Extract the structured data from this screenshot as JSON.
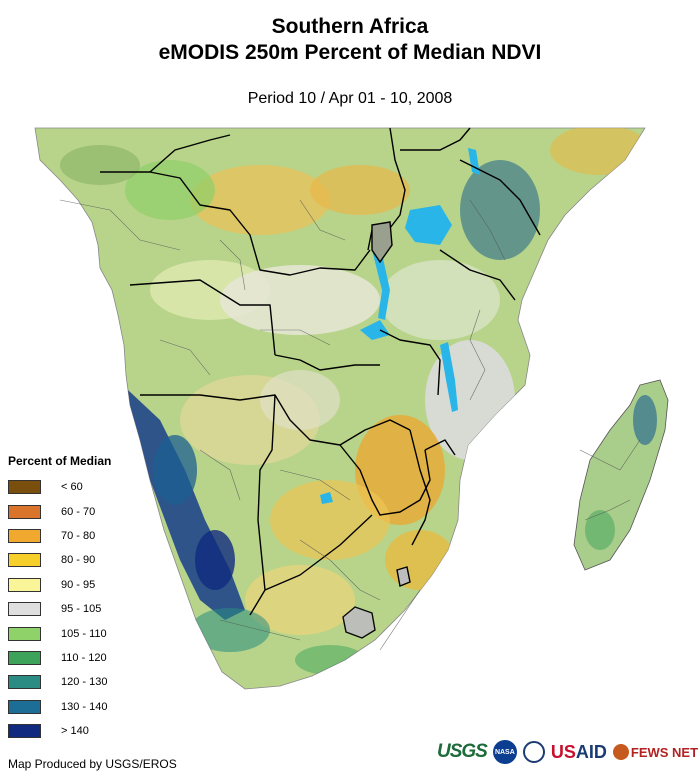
{
  "title_line1": "Southern Africa",
  "title_line2": "eMODIS 250m Percent of Median NDVI",
  "period": "Period 10 / Apr 01 - 10, 2008",
  "legend": {
    "title": "Percent of Median",
    "items": [
      {
        "label": "< 60",
        "color": "#7a4e0c"
      },
      {
        "label": "60 - 70",
        "color": "#d9742a"
      },
      {
        "label": "70 - 80",
        "color": "#f0a92e"
      },
      {
        "label": "80 - 90",
        "color": "#f6cf2a"
      },
      {
        "label": "90 - 95",
        "color": "#fbf59a"
      },
      {
        "label": "95 - 105",
        "color": "#dfdfdf"
      },
      {
        "label": "105 - 110",
        "color": "#8fd26a"
      },
      {
        "label": "110 - 120",
        "color": "#3ea35a"
      },
      {
        "label": "120 - 130",
        "color": "#2a8c82"
      },
      {
        "label": "130 - 140",
        "color": "#1d6e96"
      },
      {
        "label": "> 140",
        "color": "#102a80"
      }
    ]
  },
  "credit": "Map Produced by USGS/EROS",
  "logos": {
    "usgs": "USGS",
    "nasa": "NASA",
    "usaid_us": "US",
    "usaid_aid": "AID",
    "fews": "FEWS NET"
  }
}
